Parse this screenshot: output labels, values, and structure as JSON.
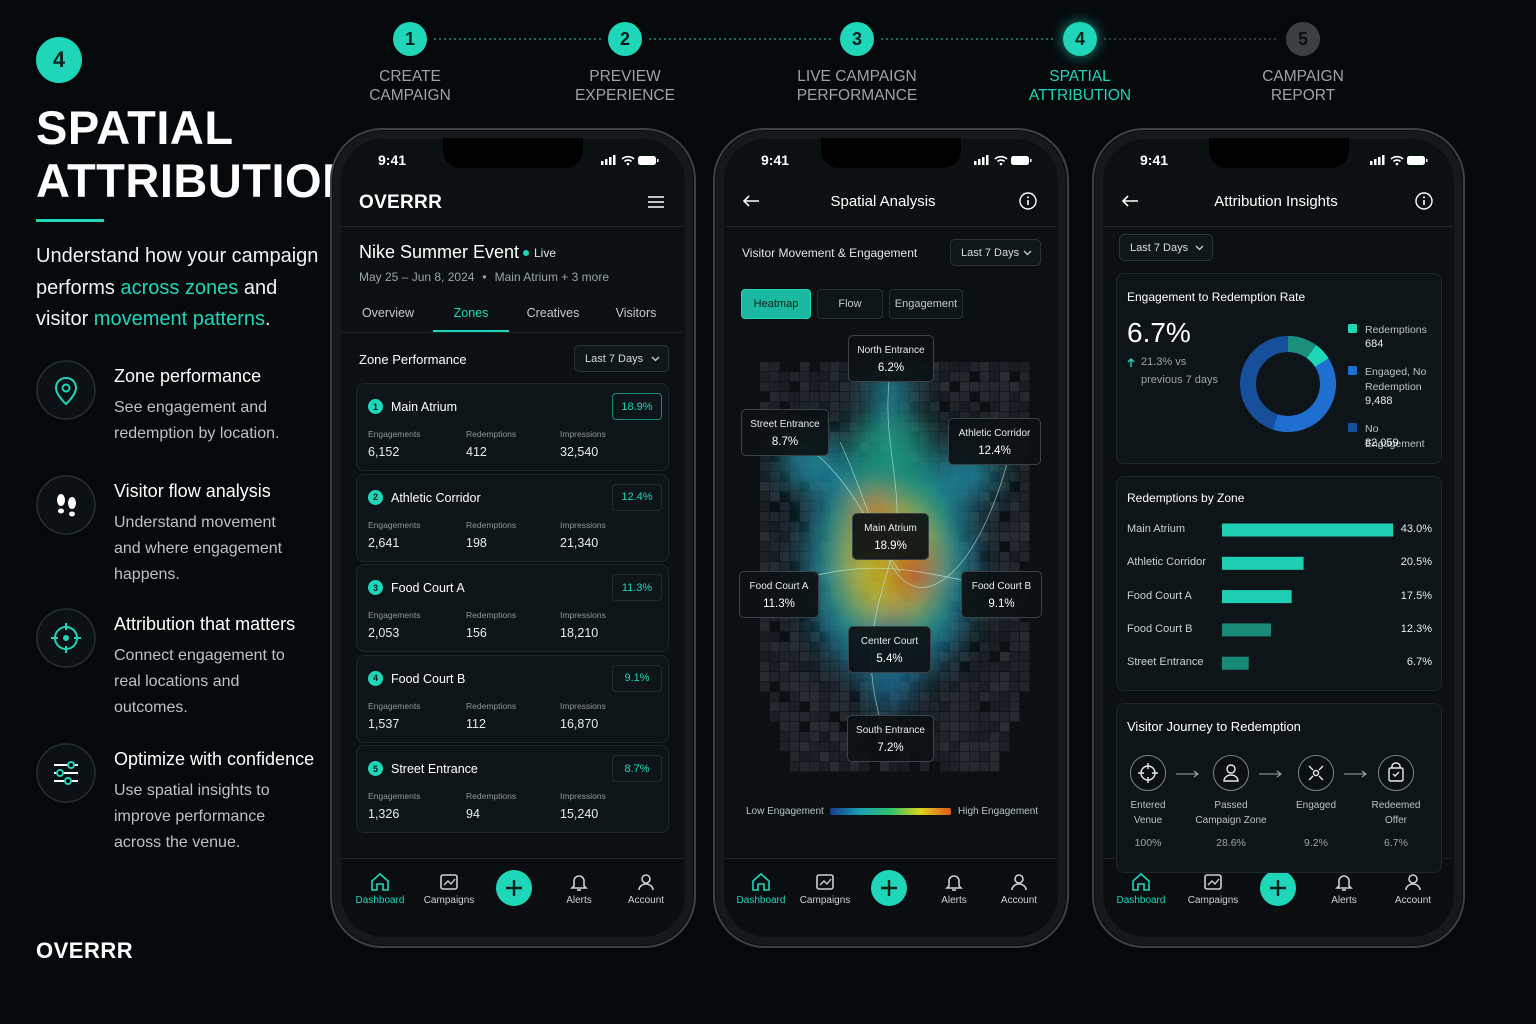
{
  "step_badge": "4",
  "title_lines": [
    "SPATIAL",
    "ATTRIBUTION"
  ],
  "intro": [
    "Understand how your campaign performs ",
    "across zones",
    " and visitor ",
    "movement patterns",
    "."
  ],
  "features": [
    {
      "title": "Zone performance",
      "text": "See engagement and redemption by location."
    },
    {
      "title": "Visitor flow analysis",
      "text": "Understand movement and where engagement happens."
    },
    {
      "title": "Attribution that matters",
      "text": "Connect engagement to real locations and outcomes."
    },
    {
      "title": "Optimize with confidence",
      "text": "Use spatial insights to improve performance across the venue."
    }
  ],
  "brand": "OVERRR",
  "steps": [
    {
      "number": 1,
      "label": [
        "CREATE",
        "CAMPAIGN"
      ],
      "state": "done"
    },
    {
      "number": 2,
      "label": [
        "PREVIEW",
        "EXPERIENCE"
      ],
      "state": "done"
    },
    {
      "number": 3,
      "label": [
        "LIVE CAMPAIGN",
        "PERFORMANCE"
      ],
      "state": "done"
    },
    {
      "number": 4,
      "label": [
        "SPATIAL",
        "ATTRIBUTION"
      ],
      "state": "active"
    },
    {
      "number": 5,
      "label": [
        "CAMPAIGN",
        "REPORT"
      ],
      "state": "upcoming"
    }
  ],
  "status_time": "9:41",
  "range": "Last 7 Days",
  "nav": [
    "Dashboard",
    "Campaigns",
    "Alerts",
    "Account"
  ],
  "nav_active": 0,
  "performance_screen": {
    "event": "Nike Summer Event",
    "status": "Live",
    "dates": "May 25 – Jun 8, 2024",
    "location": "Main Atrium + 3 more",
    "tabs": [
      "Overview",
      "Zones",
      "Creatives",
      "Visitors"
    ],
    "active_tab": 1,
    "section": "Zone Performance",
    "metric_labels": [
      "Engagements",
      "Redemptions",
      "Impressions"
    ],
    "zones": [
      {
        "rank": 1,
        "name": "Main Atrium",
        "share": "18.9%",
        "metrics": [
          "6,152",
          "412",
          "32,540"
        ]
      },
      {
        "rank": 2,
        "name": "Athletic Corridor",
        "share": "12.4%",
        "metrics": [
          "2,641",
          "198",
          "21,340"
        ]
      },
      {
        "rank": 3,
        "name": "Food Court A",
        "share": "11.3%",
        "metrics": [
          "2,053",
          "156",
          "18,210"
        ]
      },
      {
        "rank": 4,
        "name": "Food Court B",
        "share": "9.1%",
        "metrics": [
          "1,537",
          "112",
          "16,870"
        ]
      },
      {
        "rank": 5,
        "name": "Street Entrance",
        "share": "8.7%",
        "metrics": [
          "1,326",
          "94",
          "15,240"
        ]
      }
    ]
  },
  "analysis_screen": {
    "title": "Spatial Analysis",
    "subtitle": "Visitor Movement & Engagement",
    "modes": [
      "Heatmap",
      "Flow",
      "Engagement"
    ],
    "active_mode": 0,
    "zones": [
      {
        "name": "North Entrance",
        "value": "6.2%"
      },
      {
        "name": "Street Entrance",
        "value": "8.7%"
      },
      {
        "name": "Athletic Corridor",
        "value": "12.4%"
      },
      {
        "name": "Main Atrium",
        "value": "18.9%"
      },
      {
        "name": "Food Court A",
        "value": "11.3%"
      },
      {
        "name": "Food Court B",
        "value": "9.1%"
      },
      {
        "name": "Center Court",
        "value": "5.4%"
      },
      {
        "name": "South Entrance",
        "value": "7.2%"
      }
    ],
    "legend": [
      "Low Engagement",
      "High Engagement"
    ]
  },
  "insights_screen": {
    "title": "Attribution Insights",
    "rate_card": {
      "title": "Engagement to Redemption Rate",
      "rate": "6.7%",
      "change": "21.3% vs",
      "change_note": "previous 7 days",
      "legend": [
        {
          "name": "Redemptions",
          "value": "684",
          "color": "#1fd6b8"
        },
        {
          "name": "Engaged, No Redemption",
          "value": "9,488",
          "color": "#1f6fd0"
        },
        {
          "name": "No Engagement",
          "value": "82,059",
          "color": "#174f9c"
        }
      ]
    },
    "zone_chart": {
      "type": "bar",
      "title": "Redemptions by Zone",
      "categories": [
        "Main Atrium",
        "Athletic Corridor",
        "Food Court A",
        "Food Court B",
        "Street Entrance"
      ],
      "values": [
        43.0,
        20.5,
        17.5,
        12.3,
        6.7
      ],
      "value_labels": [
        "43.0%",
        "20.5%",
        "17.5%",
        "12.3%",
        "6.7%"
      ],
      "colors": [
        "#1fcfb4",
        "#1fcfb4",
        "#1fcfb4",
        "#1a8a78",
        "#1a8a78"
      ]
    },
    "journey": {
      "title": "Visitor Journey to Redemption",
      "steps": [
        {
          "label": [
            "Entered",
            "Venue"
          ],
          "value": "100%"
        },
        {
          "label": [
            "Passed",
            "Campaign Zone"
          ],
          "value": "28.6%"
        },
        {
          "label": [
            "Engaged"
          ],
          "value": "9.2%"
        },
        {
          "label": [
            "Redeemed",
            "Offer"
          ],
          "value": "6.7%"
        }
      ]
    }
  }
}
